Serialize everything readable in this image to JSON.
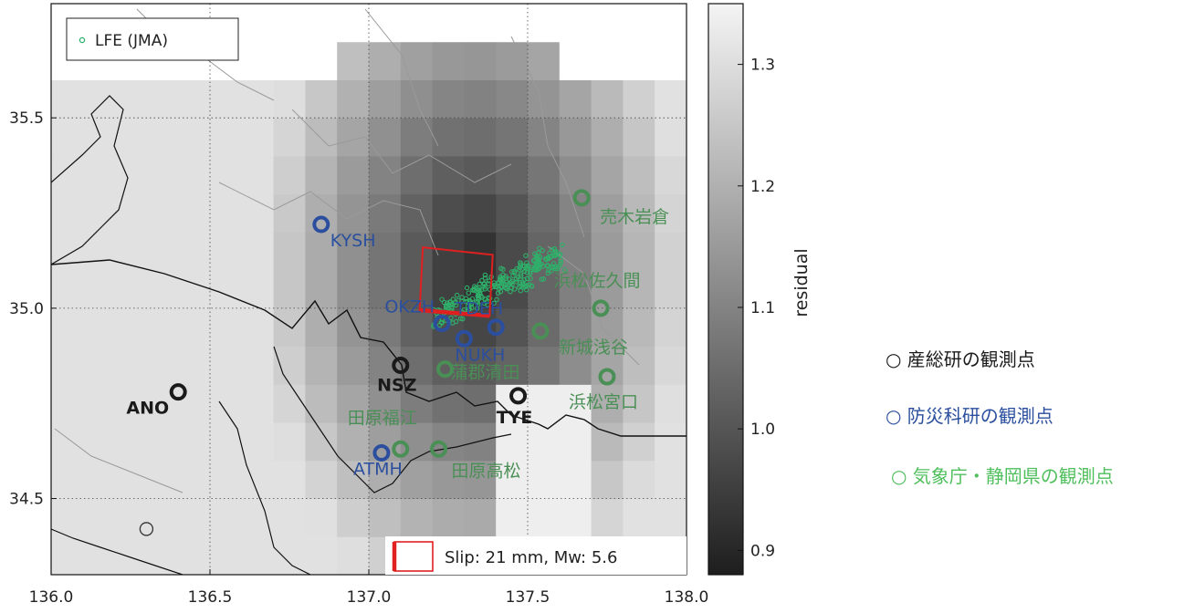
{
  "map": {
    "x_axis": {
      "range": [
        136.0,
        138.0
      ],
      "ticks": [
        "136.0",
        "136.5",
        "137.0",
        "137.5",
        "138.0"
      ]
    },
    "y_axis": {
      "range": [
        34.3,
        35.8
      ],
      "ticks": [
        "34.5",
        "35.0",
        "35.5"
      ]
    },
    "grid": "dotted",
    "legend": {
      "marker_label": "LFE (JMA)",
      "placement": "top-left",
      "color": "#2fb06a"
    },
    "slip_legend": {
      "label": "Slip: 21 mm, Mw: 5.6",
      "color": "#e02020"
    },
    "colorbar": {
      "label": "residual",
      "range": [
        0.88,
        1.35
      ],
      "ticks": [
        "0.9",
        "1.0",
        "1.1",
        "1.2",
        "1.3"
      ],
      "cmap": "gray (dark = low residual)"
    },
    "stations": {
      "aist": [
        {
          "name": "ANO",
          "lon": 136.4,
          "lat": 34.78
        },
        {
          "name": "NSZ",
          "lon": 137.1,
          "lat": 34.85
        },
        {
          "name": "TYE",
          "lon": 137.47,
          "lat": 34.77
        },
        {
          "name": "",
          "lon": 136.3,
          "lat": 34.42
        }
      ],
      "nied": [
        {
          "name": "KYSH",
          "lon": 136.85,
          "lat": 35.22
        },
        {
          "name": "OKZH",
          "lon": 137.23,
          "lat": 34.96
        },
        {
          "name": "TDEH",
          "lon": 137.4,
          "lat": 34.95
        },
        {
          "name": "NUKH",
          "lon": 137.3,
          "lat": 34.92
        },
        {
          "name": "ATMH",
          "lon": 137.04,
          "lat": 34.62
        }
      ],
      "jma": [
        {
          "name": "売木岩倉",
          "lon": 137.67,
          "lat": 35.29
        },
        {
          "name": "浜松佐久間",
          "lon": 137.73,
          "lat": 35.0
        },
        {
          "name": "新城浅谷",
          "lon": 137.54,
          "lat": 34.94
        },
        {
          "name": "蒲郡清田",
          "lon": 137.24,
          "lat": 34.84
        },
        {
          "name": "浜松宮口",
          "lon": 137.75,
          "lat": 34.82
        },
        {
          "name": "田原福江",
          "lon": 137.1,
          "lat": 34.63
        },
        {
          "name": "田原高松",
          "lon": 137.22,
          "lat": 34.63
        }
      ]
    }
  },
  "station_legend": {
    "aist": "○ 産総研の観測点",
    "nied": "○ 防災科研の観測点",
    "jma": "○ 気象庁・静岡県の観測点"
  },
  "colors": {
    "aist": "#1a1a1a",
    "nied": "#2b4f9e",
    "jma": "#4a8f55",
    "lfe": "#2fb06a",
    "slip": "#e02020"
  }
}
